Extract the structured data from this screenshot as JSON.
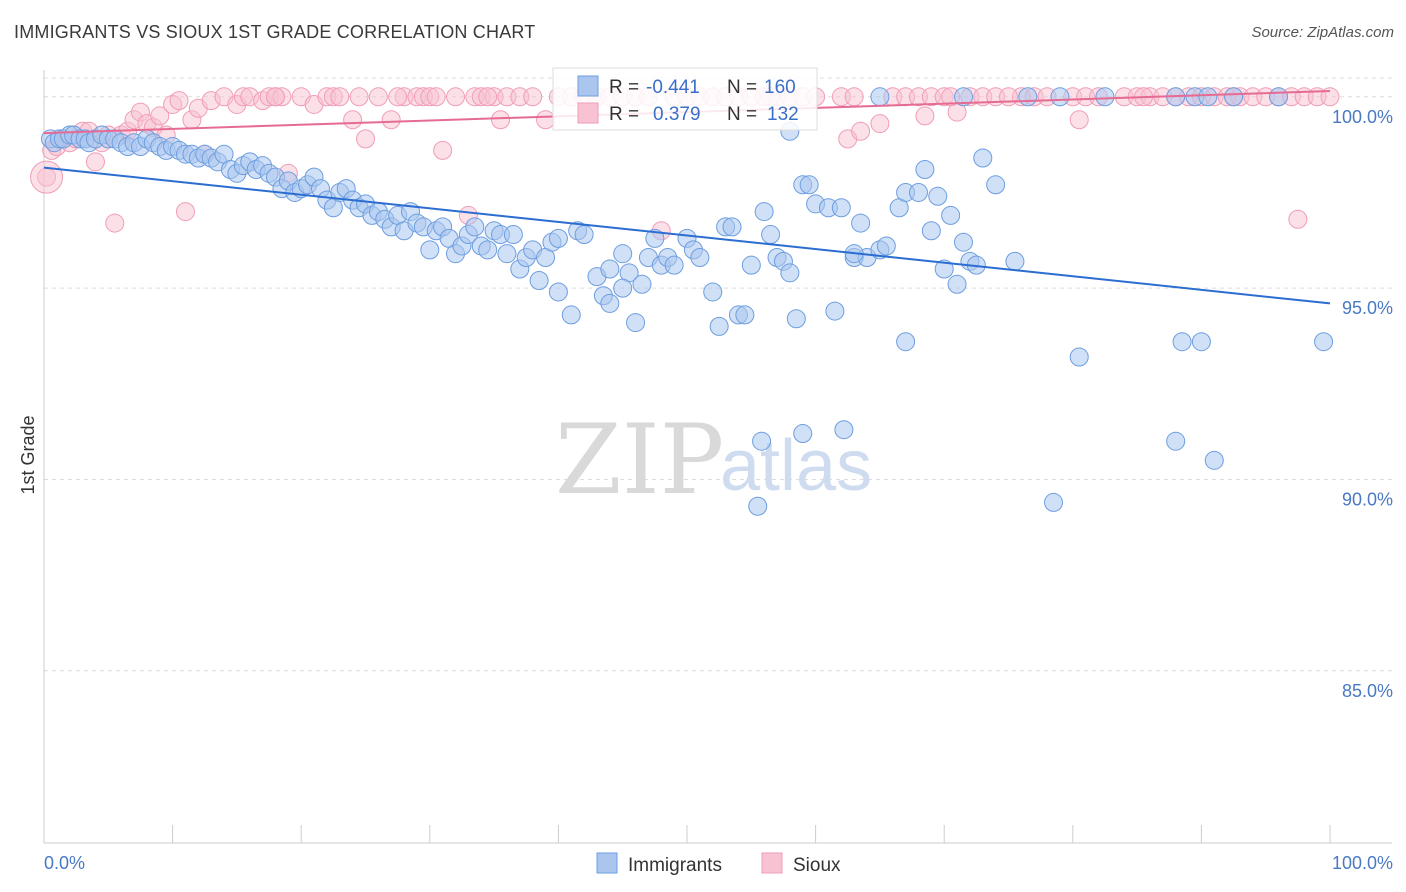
{
  "title": "IMMIGRANTS VS SIOUX 1ST GRADE CORRELATION CHART",
  "source": "Source: ZipAtlas.com",
  "watermark": {
    "zip": "ZIP",
    "atlas": "atlas"
  },
  "chart_data": {
    "type": "scatter",
    "ylabel": "1st Grade",
    "x_tick_labels": [
      "0.0%",
      "100.0%"
    ],
    "y_tick_labels": [
      "100.0%",
      "95.0%",
      "90.0%",
      "85.0%"
    ],
    "xlim": [
      0,
      100
    ],
    "ylim": [
      80.5,
      100.7
    ],
    "y_ticks": [
      100,
      95,
      90,
      85
    ],
    "grid": "horizontal dashed",
    "legend_position": "top-center",
    "bottom_legend": [
      "Immigrants",
      "Sioux"
    ],
    "colors": {
      "immigrants": "#6d9ee0",
      "sioux": "#f19db6",
      "immigrants_line": "#2b6dd0",
      "sioux_line": "#e66b93"
    },
    "stats": [
      {
        "r_label": "R =",
        "r_value": "-0.441",
        "n_label": "N =",
        "n_value": "160"
      },
      {
        "r_label": "R =",
        "r_value": "0.379",
        "n_label": "N =",
        "n_value": "132"
      }
    ],
    "series": [
      {
        "name": "Immigrants",
        "trend": {
          "x": [
            0,
            100
          ],
          "y": [
            98.15,
            94.6
          ]
        },
        "points": [
          [
            0.5,
            98.9
          ],
          [
            0.8,
            98.8
          ],
          [
            1.2,
            98.9
          ],
          [
            1.5,
            98.9
          ],
          [
            2.0,
            99.0
          ],
          [
            2.3,
            99.0
          ],
          [
            2.8,
            98.9
          ],
          [
            3.2,
            98.9
          ],
          [
            3.5,
            98.8
          ],
          [
            4.0,
            98.9
          ],
          [
            4.5,
            99.0
          ],
          [
            5.0,
            98.9
          ],
          [
            5.5,
            98.9
          ],
          [
            6.0,
            98.8
          ],
          [
            6.5,
            98.7
          ],
          [
            7.0,
            98.8
          ],
          [
            7.5,
            98.7
          ],
          [
            8.0,
            98.9
          ],
          [
            8.5,
            98.8
          ],
          [
            9.0,
            98.7
          ],
          [
            9.5,
            98.6
          ],
          [
            10.0,
            98.7
          ],
          [
            10.5,
            98.6
          ],
          [
            11.0,
            98.5
          ],
          [
            11.5,
            98.5
          ],
          [
            12.0,
            98.4
          ],
          [
            12.5,
            98.5
          ],
          [
            13.0,
            98.4
          ],
          [
            13.5,
            98.3
          ],
          [
            14.0,
            98.5
          ],
          [
            14.5,
            98.1
          ],
          [
            15.0,
            98.0
          ],
          [
            15.5,
            98.2
          ],
          [
            16.0,
            98.3
          ],
          [
            16.5,
            98.1
          ],
          [
            17.0,
            98.2
          ],
          [
            17.5,
            98.0
          ],
          [
            18.0,
            97.9
          ],
          [
            18.5,
            97.6
          ],
          [
            19.0,
            97.8
          ],
          [
            19.5,
            97.5
          ],
          [
            20.0,
            97.6
          ],
          [
            20.5,
            97.7
          ],
          [
            21.0,
            97.9
          ],
          [
            21.5,
            97.6
          ],
          [
            22.0,
            97.3
          ],
          [
            22.5,
            97.1
          ],
          [
            23.0,
            97.5
          ],
          [
            23.5,
            97.6
          ],
          [
            24.0,
            97.3
          ],
          [
            24.5,
            97.1
          ],
          [
            25.0,
            97.2
          ],
          [
            25.5,
            96.9
          ],
          [
            26.0,
            97.0
          ],
          [
            26.5,
            96.8
          ],
          [
            27.0,
            96.6
          ],
          [
            27.5,
            96.9
          ],
          [
            28.0,
            96.5
          ],
          [
            28.5,
            97.0
          ],
          [
            29.0,
            96.7
          ],
          [
            29.5,
            96.6
          ],
          [
            30.0,
            96.0
          ],
          [
            30.5,
            96.5
          ],
          [
            31.0,
            96.6
          ],
          [
            31.5,
            96.3
          ],
          [
            32.0,
            95.9
          ],
          [
            32.5,
            96.1
          ],
          [
            33.0,
            96.4
          ],
          [
            33.5,
            96.6
          ],
          [
            34.0,
            96.1
          ],
          [
            34.5,
            96.0
          ],
          [
            35.0,
            96.5
          ],
          [
            35.5,
            96.4
          ],
          [
            36.0,
            95.9
          ],
          [
            36.5,
            96.4
          ],
          [
            37.0,
            95.5
          ],
          [
            37.5,
            95.8
          ],
          [
            38.0,
            96.0
          ],
          [
            38.5,
            95.2
          ],
          [
            39.0,
            95.8
          ],
          [
            39.5,
            96.2
          ],
          [
            40.0,
            94.9
          ],
          [
            41.0,
            94.3
          ],
          [
            41.5,
            96.5
          ],
          [
            42.0,
            96.4
          ],
          [
            43.0,
            95.3
          ],
          [
            43.5,
            94.8
          ],
          [
            44.0,
            94.6
          ],
          [
            45.0,
            95.9
          ],
          [
            45.5,
            95.4
          ],
          [
            46.0,
            94.1
          ],
          [
            46.5,
            95.1
          ],
          [
            47.0,
            95.8
          ],
          [
            47.5,
            96.3
          ],
          [
            48.0,
            95.6
          ],
          [
            48.5,
            95.8
          ],
          [
            49.0,
            95.6
          ],
          [
            50.0,
            96.3
          ],
          [
            50.5,
            96.0
          ],
          [
            51.0,
            95.8
          ],
          [
            52.0,
            94.9
          ],
          [
            52.5,
            94.0
          ],
          [
            53.0,
            96.6
          ],
          [
            53.5,
            96.6
          ],
          [
            54.0,
            94.3
          ],
          [
            54.5,
            94.3
          ],
          [
            55.0,
            95.6
          ],
          [
            56.0,
            97.0
          ],
          [
            56.5,
            96.4
          ],
          [
            57.0,
            95.8
          ],
          [
            57.5,
            95.7
          ],
          [
            58.0,
            95.4
          ],
          [
            58.5,
            94.2
          ],
          [
            59.0,
            97.7
          ],
          [
            59.5,
            97.7
          ],
          [
            60.0,
            97.2
          ],
          [
            61.0,
            97.1
          ],
          [
            61.5,
            94.4
          ],
          [
            62.0,
            97.1
          ],
          [
            63.0,
            95.8
          ],
          [
            63.5,
            96.7
          ],
          [
            64.0,
            95.8
          ],
          [
            65.0,
            96.0
          ],
          [
            65.5,
            96.1
          ],
          [
            66.5,
            97.1
          ],
          [
            67.0,
            97.5
          ],
          [
            68.0,
            97.5
          ],
          [
            68.5,
            98.1
          ],
          [
            69.0,
            96.5
          ],
          [
            69.5,
            97.4
          ],
          [
            70.0,
            95.5
          ],
          [
            70.5,
            96.9
          ],
          [
            71.0,
            95.1
          ],
          [
            71.5,
            96.2
          ],
          [
            72.0,
            95.7
          ],
          [
            72.5,
            95.6
          ],
          [
            73.0,
            98.4
          ],
          [
            80.5,
            93.2
          ],
          [
            88.5,
            93.6
          ],
          [
            88.0,
            91.0
          ],
          [
            90.0,
            93.6
          ],
          [
            91.0,
            90.5
          ],
          [
            59.0,
            91.2
          ],
          [
            55.5,
            89.3
          ],
          [
            55.8,
            91.0
          ],
          [
            78.5,
            89.4
          ],
          [
            62.2,
            91.3
          ],
          [
            67.0,
            93.6
          ],
          [
            99.5,
            93.6
          ],
          [
            65.0,
            100.0
          ],
          [
            71.5,
            100.0
          ],
          [
            76.5,
            100.0
          ],
          [
            79.0,
            100.0
          ],
          [
            82.5,
            100.0
          ],
          [
            88.0,
            100.0
          ],
          [
            89.5,
            100.0
          ],
          [
            92.5,
            100.0
          ],
          [
            58.0,
            99.1
          ],
          [
            96.0,
            100.0
          ],
          [
            90.5,
            100.0
          ],
          [
            40.0,
            96.3
          ],
          [
            44.0,
            95.5
          ],
          [
            63.0,
            95.9
          ],
          [
            74.0,
            97.7
          ],
          [
            75.5,
            95.7
          ],
          [
            45.0,
            95.0
          ]
        ]
      },
      {
        "name": "Sioux",
        "trend": {
          "x": [
            0,
            100
          ],
          "y": [
            99.05,
            100.15
          ]
        },
        "points": [
          [
            0.2,
            97.9
          ],
          [
            0.6,
            98.6
          ],
          [
            1.0,
            98.7
          ],
          [
            1.5,
            98.9
          ],
          [
            2.0,
            98.8
          ],
          [
            2.5,
            98.9
          ],
          [
            3.0,
            99.1
          ],
          [
            3.5,
            99.1
          ],
          [
            4.0,
            98.3
          ],
          [
            4.5,
            98.8
          ],
          [
            5.0,
            99.0
          ],
          [
            5.5,
            96.7
          ],
          [
            6.0,
            99.0
          ],
          [
            6.5,
            99.1
          ],
          [
            7.0,
            99.4
          ],
          [
            7.5,
            99.6
          ],
          [
            8.0,
            99.3
          ],
          [
            8.5,
            99.2
          ],
          [
            9.0,
            99.5
          ],
          [
            9.5,
            99.0
          ],
          [
            10.0,
            99.8
          ],
          [
            10.5,
            99.9
          ],
          [
            11.0,
            97.0
          ],
          [
            11.5,
            99.4
          ],
          [
            12.0,
            99.7
          ],
          [
            12.5,
            98.5
          ],
          [
            13.0,
            99.9
          ],
          [
            14.0,
            100.0
          ],
          [
            15.0,
            99.8
          ],
          [
            15.5,
            100.0
          ],
          [
            16.0,
            100.0
          ],
          [
            17.0,
            99.9
          ],
          [
            17.5,
            100.0
          ],
          [
            18.0,
            100.0
          ],
          [
            18.5,
            100.0
          ],
          [
            19.0,
            98.0
          ],
          [
            20.0,
            100.0
          ],
          [
            21.0,
            99.8
          ],
          [
            22.0,
            100.0
          ],
          [
            22.5,
            100.0
          ],
          [
            23.0,
            100.0
          ],
          [
            24.0,
            99.4
          ],
          [
            24.5,
            100.0
          ],
          [
            25.0,
            98.9
          ],
          [
            26.0,
            100.0
          ],
          [
            27.0,
            99.4
          ],
          [
            28.0,
            100.0
          ],
          [
            29.0,
            100.0
          ],
          [
            29.5,
            100.0
          ],
          [
            30.0,
            100.0
          ],
          [
            30.5,
            100.0
          ],
          [
            31.0,
            98.6
          ],
          [
            32.0,
            100.0
          ],
          [
            33.0,
            96.9
          ],
          [
            33.5,
            100.0
          ],
          [
            34.0,
            100.0
          ],
          [
            35.0,
            100.0
          ],
          [
            35.5,
            99.4
          ],
          [
            36.0,
            100.0
          ],
          [
            37.0,
            100.0
          ],
          [
            38.0,
            100.0
          ],
          [
            39.0,
            99.4
          ],
          [
            40.0,
            100.0
          ],
          [
            41.0,
            100.0
          ],
          [
            42.0,
            100.0
          ],
          [
            43.0,
            100.0
          ],
          [
            44.0,
            100.0
          ],
          [
            45.0,
            100.0
          ],
          [
            46.0,
            100.0
          ],
          [
            47.0,
            100.0
          ],
          [
            48.0,
            96.5
          ],
          [
            49.0,
            100.0
          ],
          [
            50.0,
            100.0
          ],
          [
            51.0,
            100.0
          ],
          [
            52.0,
            100.0
          ],
          [
            53.0,
            100.0
          ],
          [
            54.0,
            100.0
          ],
          [
            55.0,
            100.0
          ],
          [
            56.0,
            100.0
          ],
          [
            57.0,
            100.0
          ],
          [
            58.0,
            100.0
          ],
          [
            59.0,
            100.0
          ],
          [
            60.0,
            100.0
          ],
          [
            62.0,
            100.0
          ],
          [
            62.5,
            98.9
          ],
          [
            63.0,
            100.0
          ],
          [
            65.0,
            99.3
          ],
          [
            66.0,
            100.0
          ],
          [
            67.0,
            100.0
          ],
          [
            68.0,
            100.0
          ],
          [
            69.0,
            100.0
          ],
          [
            70.0,
            100.0
          ],
          [
            71.0,
            99.6
          ],
          [
            72.0,
            100.0
          ],
          [
            73.0,
            100.0
          ],
          [
            74.0,
            100.0
          ],
          [
            76.0,
            100.0
          ],
          [
            77.0,
            100.0
          ],
          [
            78.0,
            100.0
          ],
          [
            80.0,
            100.0
          ],
          [
            81.0,
            100.0
          ],
          [
            82.0,
            100.0
          ],
          [
            84.0,
            100.0
          ],
          [
            85.0,
            100.0
          ],
          [
            86.0,
            100.0
          ],
          [
            87.0,
            100.0
          ],
          [
            88.0,
            100.0
          ],
          [
            89.0,
            100.0
          ],
          [
            90.0,
            100.0
          ],
          [
            91.0,
            100.0
          ],
          [
            92.0,
            100.0
          ],
          [
            93.0,
            100.0
          ],
          [
            94.0,
            100.0
          ],
          [
            95.0,
            100.0
          ],
          [
            96.0,
            100.0
          ],
          [
            97.0,
            100.0
          ],
          [
            97.5,
            96.8
          ],
          [
            98.0,
            100.0
          ],
          [
            99.0,
            100.0
          ],
          [
            100.0,
            100.0
          ],
          [
            63.5,
            99.1
          ],
          [
            68.5,
            99.5
          ],
          [
            70.5,
            100.0
          ],
          [
            80.5,
            99.4
          ],
          [
            85.5,
            100.0
          ],
          [
            75.0,
            100.0
          ],
          [
            92.5,
            100.0
          ],
          [
            18.0,
            100.0
          ],
          [
            27.5,
            100.0
          ],
          [
            34.5,
            100.0
          ],
          [
            56.5,
            100.0
          ]
        ]
      }
    ]
  }
}
